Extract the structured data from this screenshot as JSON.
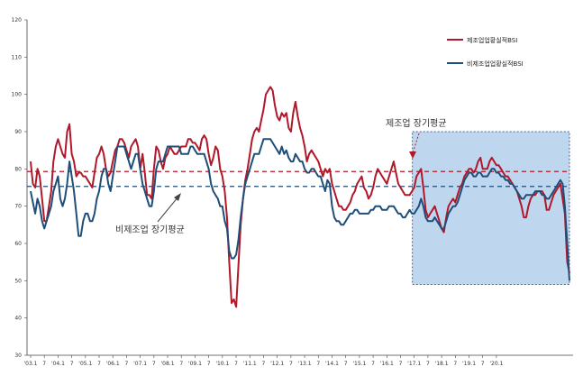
{
  "chart_data": {
    "type": "line",
    "title": "",
    "xlabel": "",
    "ylabel": "",
    "ylim": [
      30,
      120
    ],
    "yticks": [
      30,
      40,
      50,
      60,
      70,
      80,
      90,
      100,
      110,
      120
    ],
    "grid": false,
    "legend_position": "top-right",
    "x_tick_labels": [
      "'03.1",
      "7",
      "'04.1",
      "7",
      "'05.1",
      "7",
      "'06.1",
      "7",
      "'07.1",
      "7",
      "'08.1",
      "7",
      "'09.1",
      "7",
      "'10.1",
      "7",
      "'11.1",
      "7",
      "'12.1",
      "7",
      "'13.1",
      "7",
      "'14.1",
      "7",
      "'15.1",
      "7",
      "'16.1",
      "7",
      "'17.1",
      "7",
      "'18.1",
      "7",
      "'19.1",
      "7",
      "'20.1"
    ],
    "x_start": "2003-01",
    "x_end": "2020-03",
    "series": [
      {
        "name": "제조업업황실적BSI",
        "color": "#b0182b",
        "values": [
          82,
          76,
          75,
          80,
          78,
          72,
          66,
          66,
          70,
          74,
          82,
          86,
          88,
          86,
          84,
          83,
          90,
          92,
          84,
          82,
          78,
          79,
          79,
          78,
          78,
          77,
          76,
          75,
          79,
          83,
          84,
          86,
          84,
          80,
          78,
          79,
          82,
          85,
          86,
          88,
          88,
          87,
          85,
          83,
          86,
          87,
          88,
          86,
          80,
          84,
          79,
          73,
          73,
          72,
          80,
          86,
          85,
          82,
          80,
          83,
          84,
          86,
          85,
          84,
          84,
          85,
          86,
          86,
          86,
          88,
          88,
          87,
          87,
          86,
          85,
          88,
          89,
          88,
          84,
          81,
          83,
          86,
          85,
          80,
          78,
          74,
          67,
          55,
          44,
          45,
          43,
          54,
          65,
          72,
          77,
          80,
          84,
          88,
          90,
          91,
          90,
          93,
          96,
          100,
          101,
          102,
          101,
          97,
          94,
          93,
          95,
          94,
          95,
          91,
          90,
          95,
          98,
          94,
          91,
          89,
          86,
          82,
          84,
          85,
          84,
          83,
          82,
          80,
          78,
          80,
          79,
          80,
          76,
          74,
          72,
          70,
          70,
          69,
          69,
          70,
          71,
          73,
          74,
          76,
          77,
          78,
          75,
          74,
          72,
          73,
          75,
          78,
          80,
          79,
          78,
          77,
          76,
          78,
          80,
          82,
          79,
          76,
          75,
          74,
          73,
          73,
          73,
          74,
          75,
          78,
          79,
          80,
          75,
          69,
          67,
          68,
          69,
          70,
          68,
          66,
          64,
          63,
          67,
          70,
          71,
          72,
          71,
          73,
          75,
          76,
          78,
          79,
          80,
          80,
          79,
          80,
          82,
          83,
          80,
          80,
          80,
          82,
          83,
          82,
          81,
          81,
          80,
          79,
          78,
          78,
          77,
          76,
          75,
          74,
          72,
          70,
          67,
          67,
          70,
          72,
          73,
          73,
          74,
          74,
          74,
          73,
          69,
          69,
          71,
          73,
          74,
          75,
          76,
          72,
          68,
          55,
          52
        ]
      },
      {
        "name": "비제조업업황실적BSI",
        "color": "#1f4e79",
        "values": [
          74,
          71,
          68,
          72,
          70,
          66,
          64,
          66,
          68,
          70,
          74,
          76,
          78,
          72,
          70,
          72,
          76,
          82,
          78,
          74,
          68,
          62,
          62,
          66,
          68,
          68,
          66,
          66,
          68,
          72,
          74,
          78,
          80,
          80,
          76,
          74,
          78,
          82,
          86,
          86,
          86,
          86,
          84,
          82,
          80,
          82,
          84,
          84,
          80,
          76,
          74,
          72,
          70,
          70,
          74,
          80,
          82,
          82,
          82,
          84,
          86,
          86,
          86,
          86,
          86,
          86,
          84,
          84,
          84,
          84,
          86,
          86,
          85,
          84,
          84,
          84,
          84,
          82,
          80,
          76,
          74,
          73,
          72,
          70,
          70,
          66,
          64,
          58,
          56,
          56,
          57,
          61,
          67,
          72,
          76,
          78,
          80,
          82,
          84,
          84,
          84,
          86,
          88,
          88,
          88,
          88,
          87,
          86,
          85,
          84,
          86,
          84,
          85,
          83,
          82,
          82,
          84,
          83,
          82,
          82,
          80,
          79,
          79,
          80,
          80,
          79,
          78,
          78,
          76,
          74,
          77,
          76,
          70,
          67,
          66,
          66,
          65,
          65,
          66,
          67,
          68,
          68,
          69,
          69,
          68,
          68,
          68,
          68,
          68,
          69,
          69,
          70,
          70,
          70,
          69,
          69,
          69,
          70,
          70,
          70,
          69,
          68,
          68,
          67,
          67,
          68,
          69,
          68,
          68,
          69,
          70,
          72,
          70,
          67,
          66,
          66,
          66,
          67,
          66,
          65,
          64,
          64,
          66,
          68,
          69,
          70,
          70,
          71,
          73,
          75,
          77,
          78,
          79,
          79,
          78,
          78,
          79,
          79,
          78,
          78,
          78,
          79,
          80,
          80,
          79,
          79,
          78,
          78,
          77,
          77,
          76,
          76,
          75,
          74,
          73,
          72,
          72,
          73,
          73,
          73,
          73,
          74,
          74,
          74,
          73,
          73,
          72,
          72,
          73,
          74,
          75,
          76,
          77,
          76,
          70,
          60,
          50
        ]
      }
    ],
    "annotations": [
      {
        "text": "제조업 장기평균",
        "value": 79.3,
        "color": "#b0182b"
      },
      {
        "text": "비제조업 장기평균",
        "value": 75.3,
        "color": "#1f4e79"
      }
    ],
    "highlight_region": {
      "from": "2017-01",
      "to": "2020-03",
      "color": "#a9c9e8"
    }
  }
}
